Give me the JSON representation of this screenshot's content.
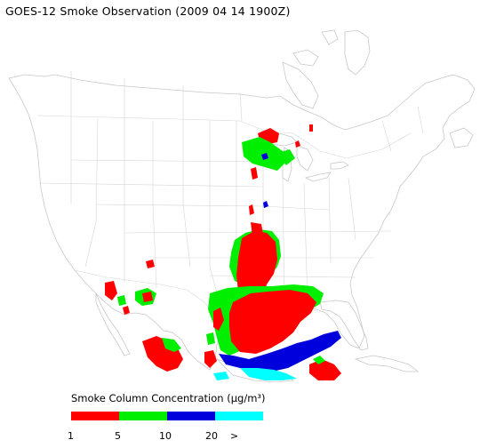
{
  "title": "GOES-12 Smoke Observation (2009 04 14  1900Z)",
  "legend": {
    "title": "Smoke Column Concentration (μg/m³)",
    "ticks": [
      "1",
      "5",
      "10",
      "20",
      ">"
    ],
    "bins": [
      {
        "color": "#ff0000"
      },
      {
        "color": "#00ee00"
      },
      {
        "color": "#0000dd"
      },
      {
        "color": "#00ffff"
      }
    ]
  },
  "colors": {
    "outline": "#c8c8c8",
    "smoke_light": "#ff0000",
    "smoke_medium": "#00ee00",
    "smoke_heavy": "#0000dd",
    "smoke_very_heavy": "#00ffff"
  }
}
